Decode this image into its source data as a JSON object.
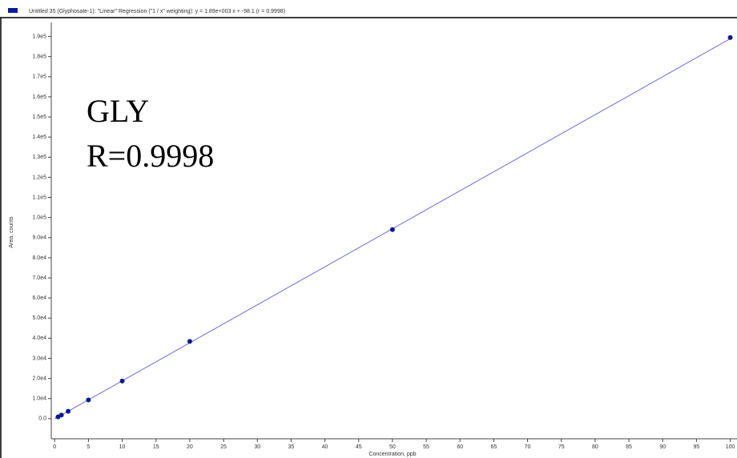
{
  "chart_data": {
    "type": "scatter",
    "legend_text": "Untitled 35 (Glyphosate-1): \"Linear\" Regression (\"1 / x\" weighting): y = 1.89e+003 x + -98.1 (r = 0.9998)",
    "xlabel": "Concentration, ppb",
    "ylabel": "Area, counts",
    "annotations": [
      "GLY",
      "R=0.9998"
    ],
    "x": [
      0.5,
      1,
      2,
      5,
      10,
      20,
      50,
      100
    ],
    "values": [
      900,
      1800,
      3700,
      9300,
      18700,
      38400,
      94000,
      189500
    ],
    "color": "#0a1a9a",
    "fit": {
      "x": [
        0,
        100
      ],
      "values": [
        -98.1,
        188901.9
      ],
      "color": "#6a6ae0"
    },
    "xlim": [
      -0.5,
      101
    ],
    "ylim": [
      -10000,
      197000
    ],
    "xticks": [
      0,
      5,
      10,
      15,
      20,
      25,
      30,
      35,
      40,
      45,
      50,
      55,
      60,
      65,
      70,
      75,
      80,
      85,
      90,
      95,
      100
    ],
    "yticks": [
      {
        "value": 0,
        "label": "0.0"
      },
      {
        "value": 10000,
        "label": "1.0e4"
      },
      {
        "value": 20000,
        "label": "2.0e4"
      },
      {
        "value": 30000,
        "label": "3.0e4"
      },
      {
        "value": 40000,
        "label": "4.0e4"
      },
      {
        "value": 50000,
        "label": "5.0e4"
      },
      {
        "value": 60000,
        "label": "6.0e4"
      },
      {
        "value": 70000,
        "label": "7.0e4"
      },
      {
        "value": 80000,
        "label": "8.0e4"
      },
      {
        "value": 90000,
        "label": "9.0e4"
      },
      {
        "value": 100000,
        "label": "1.0e5"
      },
      {
        "value": 110000,
        "label": "1.1e5"
      },
      {
        "value": 120000,
        "label": "1.2e5"
      },
      {
        "value": 130000,
        "label": "1.3e5"
      },
      {
        "value": 140000,
        "label": "1.4e5"
      },
      {
        "value": 150000,
        "label": "1.5e5"
      },
      {
        "value": 160000,
        "label": "1.6e5"
      },
      {
        "value": 170000,
        "label": "1.7e5"
      },
      {
        "value": 180000,
        "label": "1.8e5"
      },
      {
        "value": 190000,
        "label": "1.9e5"
      }
    ]
  }
}
